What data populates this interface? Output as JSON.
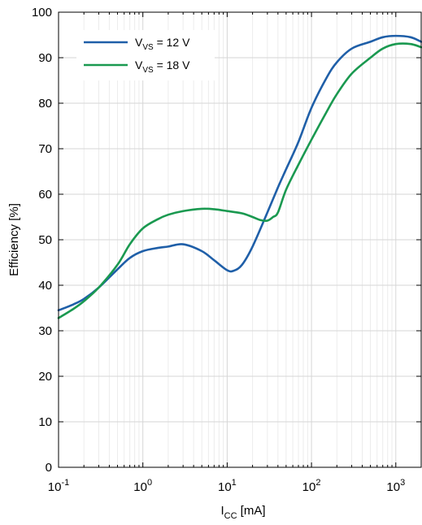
{
  "chart_data": {
    "type": "line",
    "xlabel": {
      "main": "I",
      "sub": "CC",
      "suffix": " [mA]"
    },
    "ylabel": "Efficiency [%]",
    "xscale": "log",
    "xlim": [
      0.1,
      2000
    ],
    "ylim": [
      0,
      100
    ],
    "grid": true,
    "legend_placement": "top-left",
    "x_ticks": [
      {
        "value": 0.1,
        "base": "10",
        "exp": "-1"
      },
      {
        "value": 1,
        "base": "10",
        "exp": "0"
      },
      {
        "value": 10,
        "base": "10",
        "exp": "1"
      },
      {
        "value": 100,
        "base": "10",
        "exp": "2"
      },
      {
        "value": 1000,
        "base": "10",
        "exp": "3"
      }
    ],
    "y_ticks": [
      0,
      10,
      20,
      30,
      40,
      50,
      60,
      70,
      80,
      90,
      100
    ],
    "series": [
      {
        "name": "VVS = 12 V",
        "legend": {
          "main": "V",
          "sub": "VS",
          "suffix": " = 12 V"
        },
        "color": "#1f5fa8",
        "x": [
          0.1,
          0.15,
          0.2,
          0.3,
          0.5,
          0.7,
          1,
          1.5,
          2,
          3,
          5,
          7,
          10,
          12,
          15,
          20,
          30,
          40,
          50,
          70,
          100,
          150,
          200,
          300,
          500,
          700,
          1000,
          1500,
          2000
        ],
        "y": [
          34.5,
          35.8,
          37.0,
          39.5,
          43.5,
          46.0,
          47.5,
          48.2,
          48.5,
          49.0,
          47.5,
          45.5,
          43.3,
          43.2,
          44.5,
          48.5,
          56.0,
          61.5,
          65.5,
          71.5,
          79.0,
          85.5,
          89.0,
          92.0,
          93.5,
          94.5,
          94.8,
          94.5,
          93.5
        ]
      },
      {
        "name": "VVS = 18 V",
        "legend": {
          "main": "V",
          "sub": "VS",
          "suffix": " = 18 V"
        },
        "color": "#1a9950",
        "x": [
          0.1,
          0.15,
          0.2,
          0.3,
          0.5,
          0.7,
          1,
          1.5,
          2,
          3,
          5,
          7,
          10,
          15,
          20,
          25,
          30,
          35,
          40,
          50,
          70,
          100,
          150,
          200,
          300,
          500,
          700,
          1000,
          1500,
          2000
        ],
        "y": [
          32.8,
          34.8,
          36.5,
          39.5,
          44.5,
          49.0,
          52.5,
          54.5,
          55.5,
          56.3,
          56.8,
          56.7,
          56.3,
          55.8,
          55.0,
          54.3,
          54.2,
          55.0,
          56.0,
          61.0,
          66.5,
          72.0,
          78.0,
          82.0,
          86.5,
          90.0,
          92.0,
          93.0,
          93.0,
          92.3
        ]
      }
    ]
  }
}
